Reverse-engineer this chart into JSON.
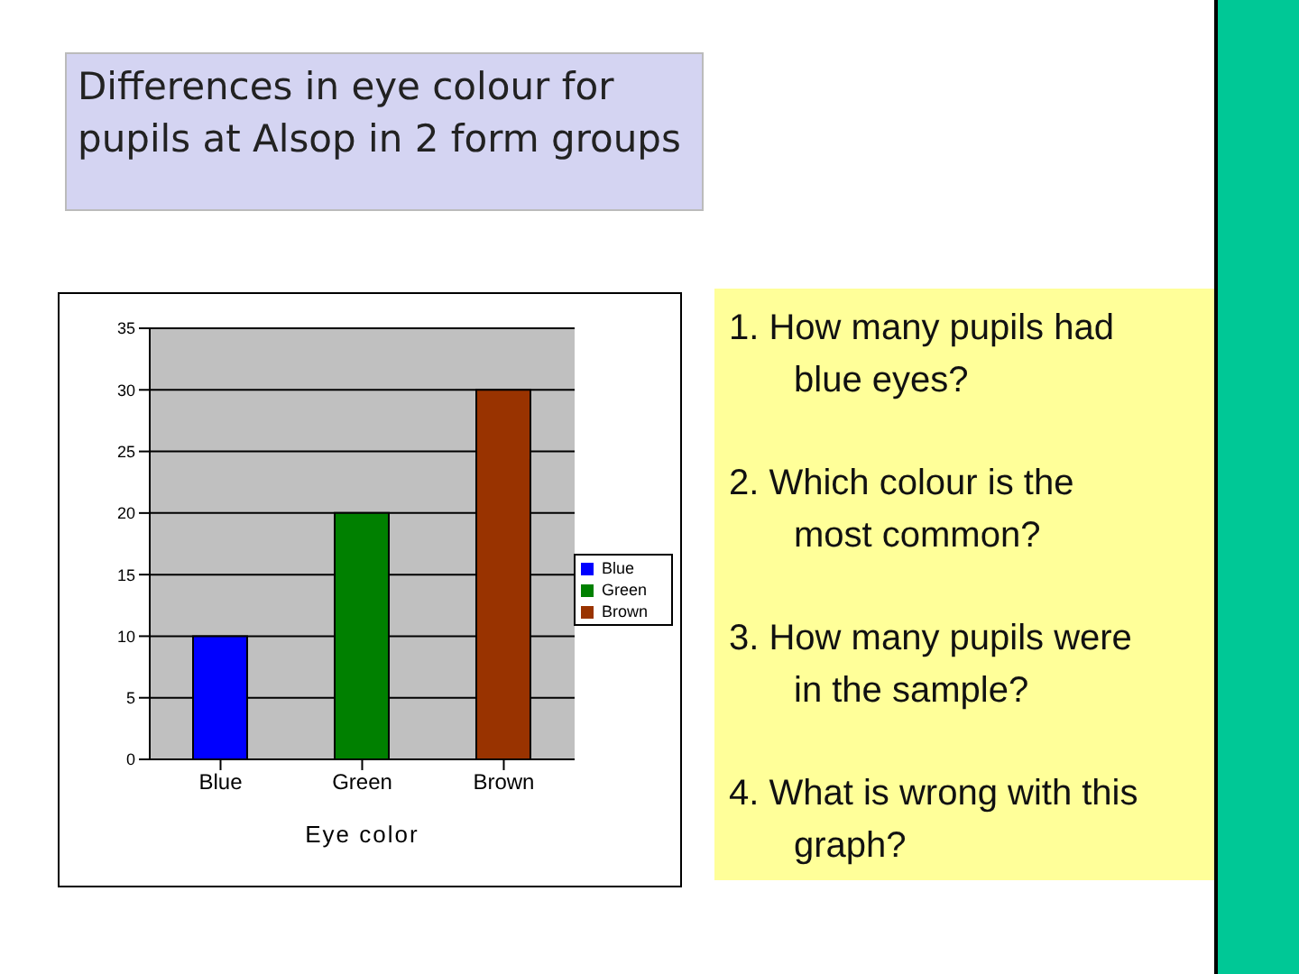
{
  "chart_data": {
    "type": "bar",
    "title": "Differences in eye colour for pupils at Alsop in 2 form groups",
    "categories": [
      "Blue",
      "Green",
      "Brown"
    ],
    "series": [
      {
        "name": "Blue",
        "color": "#0000ff",
        "values": [
          10,
          null,
          null
        ]
      },
      {
        "name": "Green",
        "color": "#008000",
        "values": [
          null,
          20,
          null
        ]
      },
      {
        "name": "Brown",
        "color": "#993300",
        "values": [
          null,
          null,
          30
        ]
      }
    ],
    "xlabel": "Eye color",
    "ylim": [
      0,
      35
    ],
    "yticks": [
      0,
      5,
      10,
      15,
      20,
      25,
      30,
      35
    ],
    "grid": "y",
    "legend": "right",
    "annotations": [
      "1. How many pupils had blue eyes?",
      "2. Which colour is the most common?",
      "3. How many pupils were in the sample?",
      "4. What is wrong with this graph?"
    ]
  }
}
